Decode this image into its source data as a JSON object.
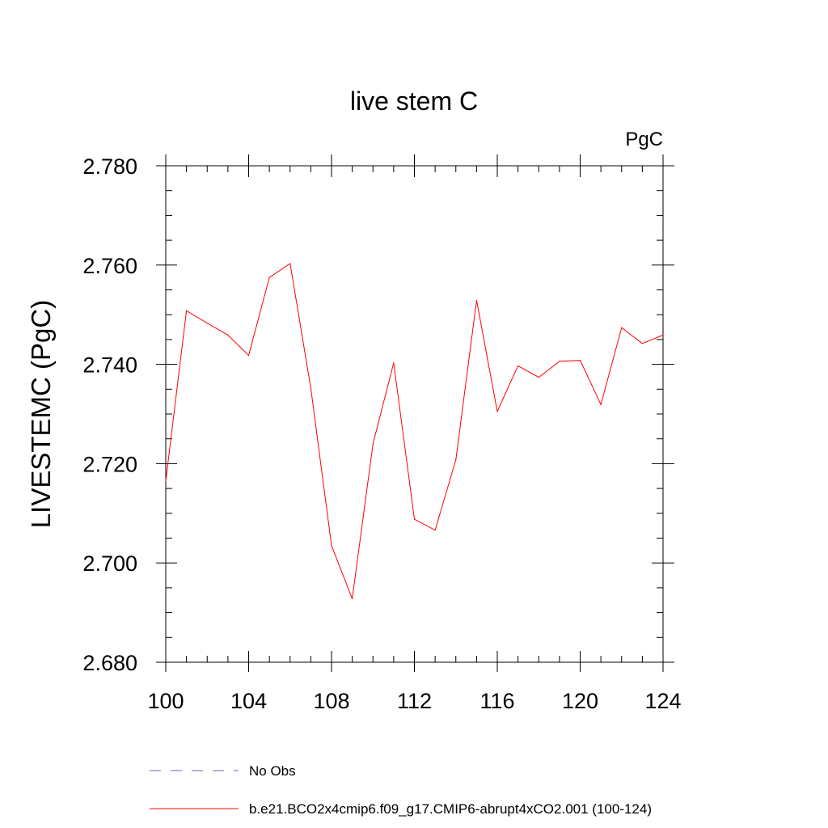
{
  "chart_data": {
    "type": "line",
    "title": "live stem C",
    "units": "PgC",
    "xlabel": "",
    "ylabel": "LIVESTEMC  (PgC)",
    "xlim": [
      100,
      124
    ],
    "ylim": [
      2.68,
      2.78
    ],
    "x_ticks": [
      100,
      104,
      108,
      112,
      116,
      120,
      124
    ],
    "y_ticks": [
      "2.680",
      "2.700",
      "2.720",
      "2.740",
      "2.760",
      "2.780"
    ],
    "grid": false,
    "legend_position": "bottom",
    "series": [
      {
        "name": "b.e21.BCO2x4cmip6.f09_g17.CMIP6-abrupt4xCO2.001 (100-124)",
        "color": "#ff0000",
        "style": "solid",
        "x": [
          100,
          101,
          102,
          103,
          104,
          105,
          106,
          107,
          108,
          109,
          110,
          111,
          112,
          113,
          114,
          115,
          116,
          117,
          118,
          119,
          120,
          121,
          122,
          123,
          124
        ],
        "y": [
          2.7165,
          2.7508,
          2.7483,
          2.7459,
          2.7418,
          2.7575,
          2.7603,
          2.7352,
          2.7035,
          2.6928,
          2.724,
          2.7403,
          2.7088,
          2.7066,
          2.7208,
          2.7529,
          2.7305,
          2.7397,
          2.7374,
          2.7406,
          2.7408,
          2.7319,
          2.7474,
          2.7442,
          2.7459
        ]
      }
    ],
    "legend": [
      {
        "label": "No Obs",
        "color": "#6666bb",
        "style": "dashed"
      },
      {
        "label": "b.e21.BCO2x4cmip6.f09_g17.CMIP6-abrupt4xCO2.001 (100-124)",
        "color": "#ff0000",
        "style": "solid"
      }
    ]
  }
}
